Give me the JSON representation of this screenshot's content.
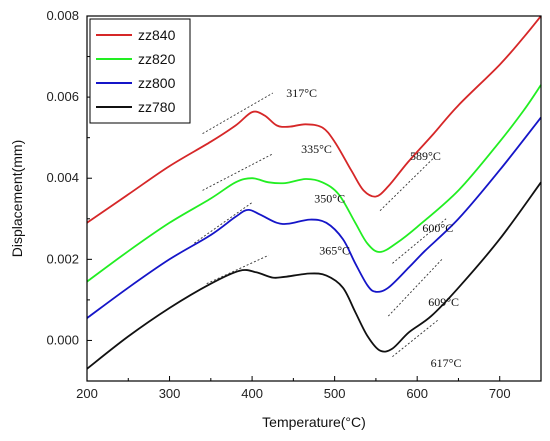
{
  "chart_data": {
    "type": "line",
    "title": "",
    "xlabel": "Temperature(°C)",
    "ylabel": "Displacement(mm)",
    "xlim": [
      200,
      750
    ],
    "ylim": [
      -0.001,
      0.008
    ],
    "x_ticks": [
      "200",
      "300",
      "400",
      "500",
      "600",
      "700"
    ],
    "y_ticks": [
      "0.000",
      "0.002",
      "0.004",
      "0.006",
      "0.008"
    ],
    "grid": false,
    "legend_position": "top-left",
    "series": [
      {
        "name": "zz840",
        "color": "#d62728",
        "points": [
          [
            200,
            0.0029
          ],
          [
            250,
            0.0036
          ],
          [
            300,
            0.0043
          ],
          [
            350,
            0.0049
          ],
          [
            380,
            0.0053
          ],
          [
            400,
            0.00563
          ],
          [
            415,
            0.00555
          ],
          [
            430,
            0.0053
          ],
          [
            445,
            0.00527
          ],
          [
            465,
            0.00533
          ],
          [
            485,
            0.00525
          ],
          [
            500,
            0.0049
          ],
          [
            520,
            0.0042
          ],
          [
            535,
            0.0037
          ],
          [
            550,
            0.00355
          ],
          [
            565,
            0.0038
          ],
          [
            589,
            0.0044
          ],
          [
            620,
            0.0051
          ],
          [
            650,
            0.0058
          ],
          [
            700,
            0.0068
          ],
          [
            730,
            0.0075
          ],
          [
            750,
            0.008
          ]
        ]
      },
      {
        "name": "zz820",
        "color": "#22ee22",
        "points": [
          [
            200,
            0.00145
          ],
          [
            250,
            0.0022
          ],
          [
            300,
            0.0029
          ],
          [
            350,
            0.0035
          ],
          [
            380,
            0.0039
          ],
          [
            400,
            0.004
          ],
          [
            420,
            0.0039
          ],
          [
            440,
            0.00388
          ],
          [
            465,
            0.00398
          ],
          [
            485,
            0.0039
          ],
          [
            505,
            0.0036
          ],
          [
            525,
            0.0029
          ],
          [
            540,
            0.00238
          ],
          [
            555,
            0.00218
          ],
          [
            575,
            0.0024
          ],
          [
            600,
            0.0028
          ],
          [
            650,
            0.0037
          ],
          [
            700,
            0.0049
          ],
          [
            730,
            0.0057
          ],
          [
            750,
            0.0063
          ]
        ]
      },
      {
        "name": "zz800",
        "color": "#1515c8",
        "points": [
          [
            200,
            0.00055
          ],
          [
            250,
            0.0013
          ],
          [
            300,
            0.002
          ],
          [
            350,
            0.0026
          ],
          [
            380,
            0.00305
          ],
          [
            395,
            0.00322
          ],
          [
            410,
            0.0031
          ],
          [
            430,
            0.0029
          ],
          [
            445,
            0.00288
          ],
          [
            470,
            0.00298
          ],
          [
            490,
            0.0029
          ],
          [
            510,
            0.0025
          ],
          [
            525,
            0.0019
          ],
          [
            540,
            0.00135
          ],
          [
            550,
            0.0012
          ],
          [
            565,
            0.0013
          ],
          [
            590,
            0.0018
          ],
          [
            609,
            0.0022
          ],
          [
            650,
            0.003
          ],
          [
            700,
            0.0042
          ],
          [
            750,
            0.0055
          ]
        ]
      },
      {
        "name": "zz780",
        "color": "#111111",
        "points": [
          [
            200,
            -0.0007
          ],
          [
            250,
            0.0001
          ],
          [
            300,
            0.0008
          ],
          [
            350,
            0.0014
          ],
          [
            385,
            0.00172
          ],
          [
            405,
            0.00168
          ],
          [
            425,
            0.00155
          ],
          [
            440,
            0.00157
          ],
          [
            470,
            0.00165
          ],
          [
            490,
            0.0016
          ],
          [
            510,
            0.0013
          ],
          [
            525,
            0.0007
          ],
          [
            540,
            0.0001
          ],
          [
            555,
            -0.00025
          ],
          [
            570,
            -0.0002
          ],
          [
            590,
            0.0002
          ],
          [
            617,
            0.0006
          ],
          [
            650,
            0.0013
          ],
          [
            700,
            0.0025
          ],
          [
            750,
            0.0039
          ]
        ]
      }
    ],
    "annotations": [
      {
        "text": "317°C",
        "at": [
          460,
          0.006
        ],
        "tangent": [
          [
            340,
            0.0051
          ],
          [
            425,
            0.0061
          ]
        ]
      },
      {
        "text": "335°C",
        "at": [
          478,
          0.00462
        ],
        "tangent": [
          [
            340,
            0.0037
          ],
          [
            425,
            0.0046
          ]
        ]
      },
      {
        "text": "350°C",
        "at": [
          494,
          0.0034
        ],
        "tangent": [
          [
            330,
            0.0024
          ],
          [
            400,
            0.0034
          ]
        ]
      },
      {
        "text": "365°C",
        "at": [
          500,
          0.00212
        ],
        "tangent": [
          [
            345,
            0.0014
          ],
          [
            420,
            0.0021
          ]
        ]
      },
      {
        "text": "589°C",
        "at": [
          610,
          0.00445
        ],
        "tangent": [
          [
            555,
            0.0032
          ],
          [
            620,
            0.0045
          ]
        ]
      },
      {
        "text": "600°C",
        "at": [
          625,
          0.00268
        ],
        "tangent": [
          [
            570,
            0.0019
          ],
          [
            635,
            0.003
          ]
        ]
      },
      {
        "text": "609°C",
        "at": [
          632,
          0.00085
        ],
        "tangent": [
          [
            565,
            0.0006
          ],
          [
            630,
            0.002
          ]
        ]
      },
      {
        "text": "617°C",
        "at": [
          635,
          -0.00065
        ],
        "tangent": [
          [
            570,
            -0.0004
          ],
          [
            625,
            0.0005
          ]
        ]
      }
    ]
  }
}
